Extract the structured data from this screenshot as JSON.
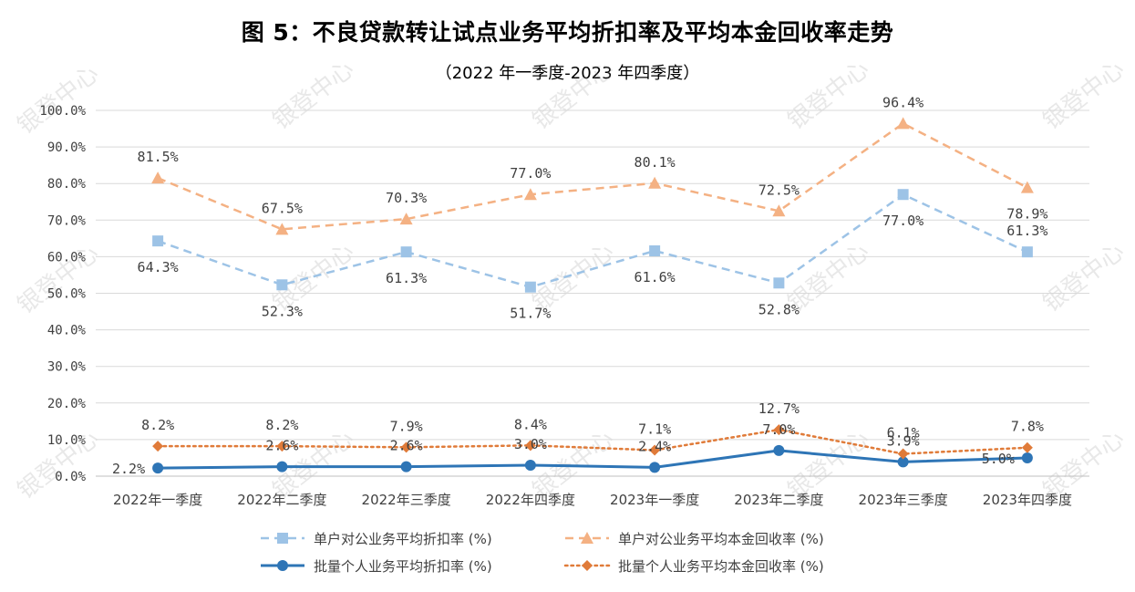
{
  "title": "图 5：不良贷款转让试点业务平均折扣率及平均本金回收率走势",
  "subtitle": "（2022 年一季度-2023 年四季度）",
  "watermark": "银登中心",
  "colors": {
    "light_blue": "#9dc3e6",
    "light_orange": "#f4b183",
    "dark_blue": "#2e75b6",
    "dark_orange": "#e07b39",
    "grid": "#d9d9d9",
    "axis_text": "#404040"
  },
  "chart_data": {
    "type": "line",
    "categories": [
      "2022年一季度",
      "2022年二季度",
      "2022年三季度",
      "2022年四季度",
      "2023年一季度",
      "2023年二季度",
      "2023年三季度",
      "2023年四季度"
    ],
    "ylim": [
      0,
      100
    ],
    "yticks": [
      0,
      10,
      20,
      30,
      40,
      50,
      60,
      70,
      80,
      90,
      100
    ],
    "ytick_labels": [
      "0.0%",
      "10.0%",
      "20.0%",
      "30.0%",
      "40.0%",
      "50.0%",
      "60.0%",
      "70.0%",
      "80.0%",
      "90.0%",
      "100.0%"
    ],
    "grid": true,
    "legend_position": "bottom",
    "series": [
      {
        "name": "单户对公业务平均折扣率 (%)",
        "values": [
          64.3,
          52.3,
          61.3,
          51.7,
          61.6,
          52.8,
          77.0,
          61.3
        ],
        "labels": [
          "64.3%",
          "52.3%",
          "61.3%",
          "51.7%",
          "61.6%",
          "52.8%",
          "77.0%",
          "61.3%"
        ],
        "label_pos": [
          "below",
          "below",
          "below",
          "below",
          "below",
          "below",
          "below",
          "above"
        ],
        "line": "dashed",
        "marker": "square",
        "color": "#9dc3e6"
      },
      {
        "name": "单户对公业务平均本金回收率 (%)",
        "values": [
          81.5,
          67.5,
          70.3,
          77.0,
          80.1,
          72.5,
          96.4,
          78.9
        ],
        "labels": [
          "81.5%",
          "67.5%",
          "70.3%",
          "77.0%",
          "80.1%",
          "72.5%",
          "96.4%",
          "78.9%"
        ],
        "label_pos": [
          "above",
          "above",
          "above",
          "above",
          "above",
          "above",
          "above",
          "below"
        ],
        "line": "dashed",
        "marker": "triangle",
        "color": "#f4b183"
      },
      {
        "name": "批量个人业务平均折扣率 (%)",
        "values": [
          2.2,
          2.6,
          2.6,
          3.0,
          2.4,
          7.0,
          3.9,
          5.0
        ],
        "labels": [
          "2.2%",
          "2.6%",
          "2.6%",
          "3.0%",
          "2.4%",
          "7.0%",
          "3.9%",
          "5.0%"
        ],
        "label_pos": [
          "left",
          "above",
          "above",
          "above",
          "above",
          "above",
          "above",
          "left"
        ],
        "line": "solid",
        "marker": "circle",
        "color": "#2e75b6"
      },
      {
        "name": "批量个人业务平均本金回收率 (%)",
        "values": [
          8.2,
          8.2,
          7.9,
          8.4,
          7.1,
          12.7,
          6.1,
          7.8
        ],
        "labels": [
          "8.2%",
          "8.2%",
          "7.9%",
          "8.4%",
          "7.1%",
          "12.7%",
          "6.1%",
          "7.8%"
        ],
        "label_pos": [
          "above",
          "above",
          "above",
          "above",
          "above",
          "above",
          "above",
          "above"
        ],
        "line": "dotted",
        "marker": "diamond",
        "color": "#e07b39"
      }
    ]
  }
}
